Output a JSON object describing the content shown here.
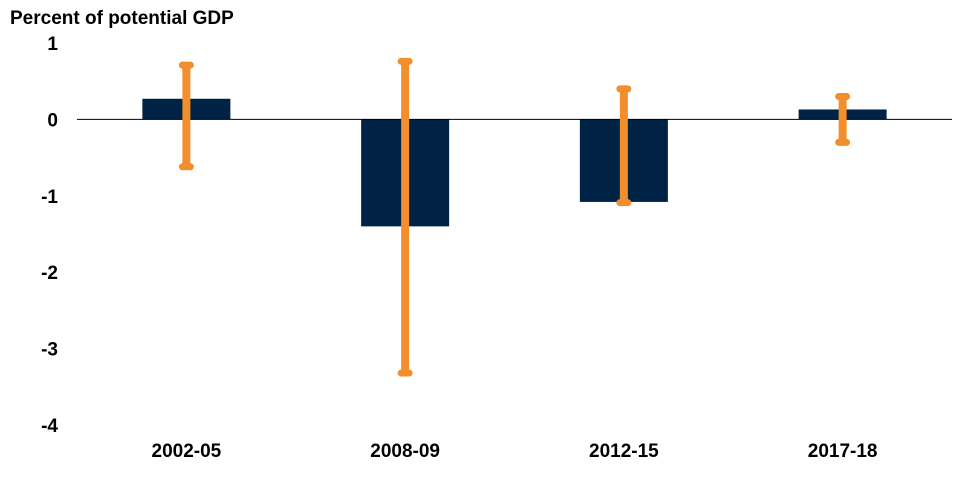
{
  "chart_data": {
    "type": "bar",
    "title": "",
    "xlabel": "",
    "ylabel": "Percent of potential GDP",
    "categories": [
      "2002-05",
      "2008-09",
      "2012-15",
      "2017-18"
    ],
    "values": [
      0.27,
      -1.4,
      -1.08,
      0.13
    ],
    "error_ranges": [
      {
        "low": -0.62,
        "high": 0.71
      },
      {
        "low": -3.32,
        "high": 0.76
      },
      {
        "low": -1.09,
        "high": 0.4
      },
      {
        "low": -0.3,
        "high": 0.3
      }
    ],
    "ylim": [
      -4,
      1
    ],
    "yticks": [
      1,
      0,
      -1,
      -2,
      -3,
      -4
    ],
    "grid": false,
    "legend": "none",
    "colors": {
      "bar": "#002244",
      "error_range": "#f28e2b",
      "axis": "#000000"
    }
  }
}
